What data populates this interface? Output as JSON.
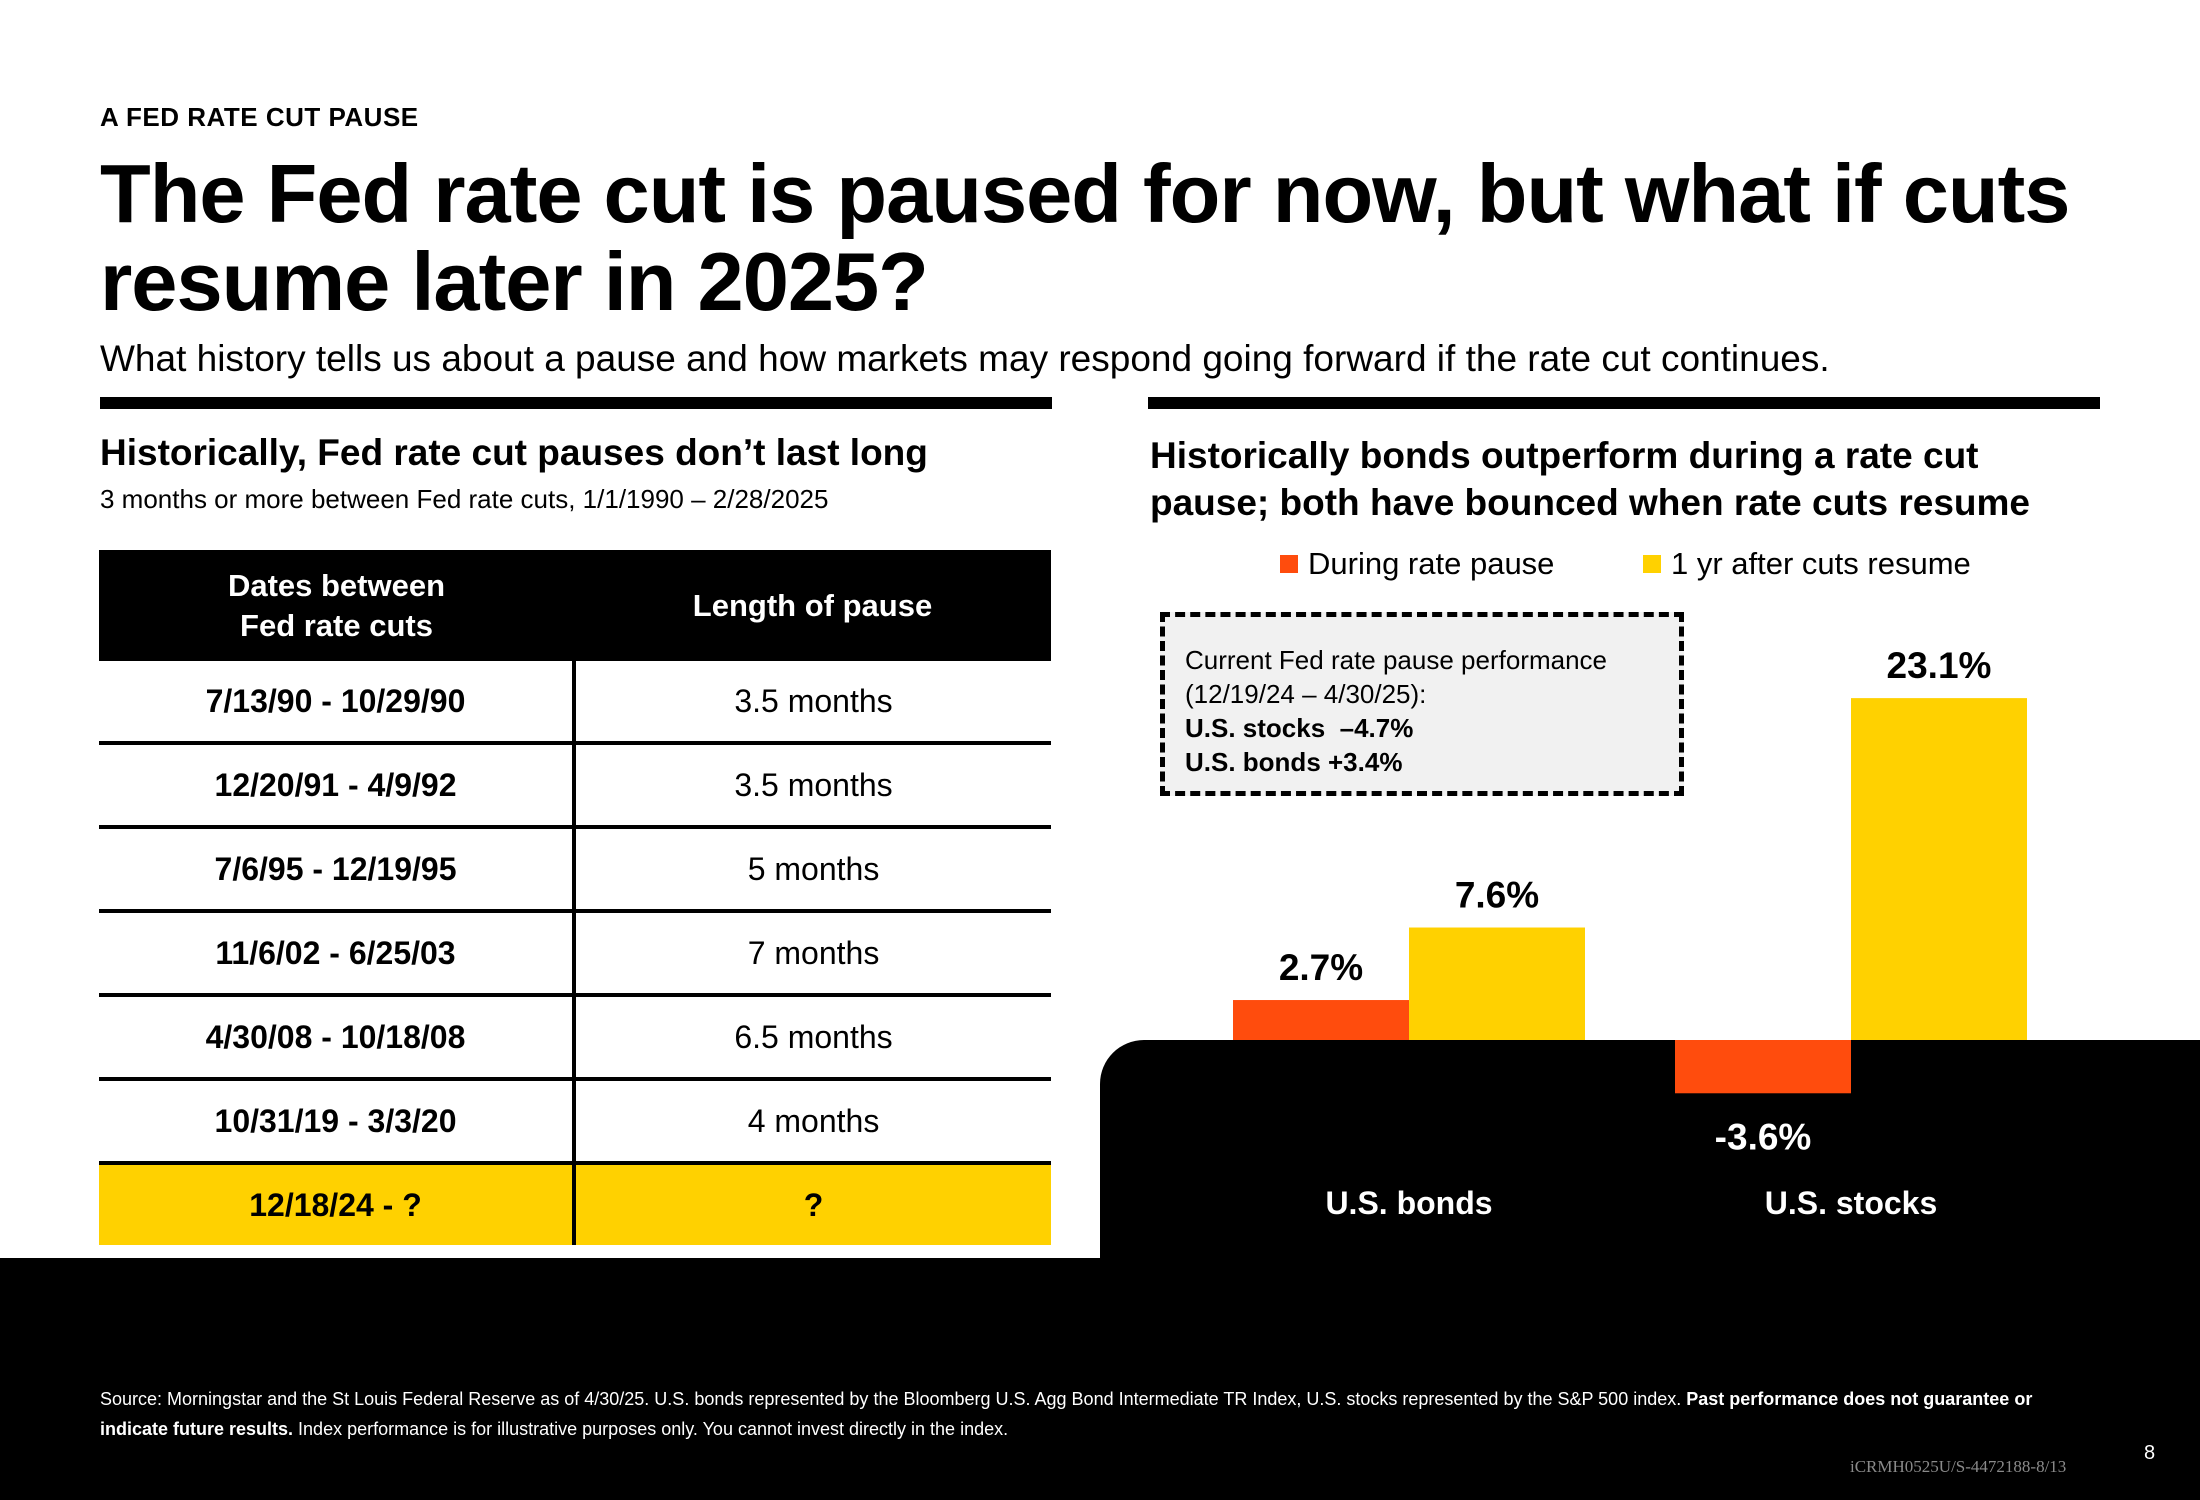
{
  "eyebrow": "A FED RATE CUT PAUSE",
  "title": "The Fed rate cut is paused for now, but what if cuts resume later in 2025?",
  "subtitle": "What history tells us about a pause and how markets may respond going forward if the rate cut continues.",
  "table": {
    "heading": "Historically, Fed rate cut pauses don’t last long",
    "subheading": "3 months or more between Fed rate cuts, 1/1/1990 – 2/28/2025",
    "col1_line1": "Dates between",
    "col1_line2": "Fed rate cuts",
    "col2": "Length of pause",
    "rows": [
      {
        "dates": "7/13/90 - 10/29/90",
        "length": "3.5 months"
      },
      {
        "dates": "12/20/91 - 4/9/92",
        "length": "3.5 months"
      },
      {
        "dates": "7/6/95 - 12/19/95",
        "length": "5 months"
      },
      {
        "dates": "11/6/02 - 6/25/03",
        "length": "7 months"
      },
      {
        "dates": "4/30/08 - 10/18/08",
        "length": "6.5 months"
      },
      {
        "dates": "10/31/19 - 3/3/20",
        "length": "4 months"
      },
      {
        "dates": "12/18/24 - ?",
        "length": "?"
      }
    ]
  },
  "chart": {
    "heading": "Historically bonds outperform during a rate cut pause; both have bounced when rate cuts resume"
  },
  "callout": {
    "line1": "Current Fed rate pause performance",
    "line2": "(12/19/24 – 4/30/25):",
    "line3": "U.S. stocks  –4.7%",
    "line4": "U.S. bonds +3.4%"
  },
  "chart_data": {
    "type": "bar",
    "categories": [
      "U.S. bonds",
      "U.S. stocks"
    ],
    "series": [
      {
        "name": "During rate pause",
        "values": [
          2.7,
          -3.6
        ],
        "labels": [
          "2.7%",
          "-3.6%"
        ],
        "color": "#FF4C0D"
      },
      {
        "name": "1 yr after cuts resume",
        "values": [
          7.6,
          23.1
        ],
        "labels": [
          "7.6%",
          "23.1%"
        ],
        "color": "#FFD100"
      }
    ],
    "legend_position": "top",
    "grid": false
  },
  "footer": {
    "source_prefix": "Source:  Morningstar and the St Louis Federal Reserve as of 4/30/25. U.S. bonds represented by the Bloomberg U.S. Agg Bond Intermediate TR Index, U.S. stocks represented by the S&P 500 index. ",
    "source_bold": "Past performance does not guarantee or indicate future results.",
    "source_suffix": " Index performance is for illustrative purposes only. You cannot invest directly in the index.",
    "code": "iCRMH0525U/S-4472188-8/13",
    "page": "8"
  },
  "colors": {
    "orange": "#FF4C0D",
    "yellow": "#FFD100",
    "black": "#000000"
  }
}
